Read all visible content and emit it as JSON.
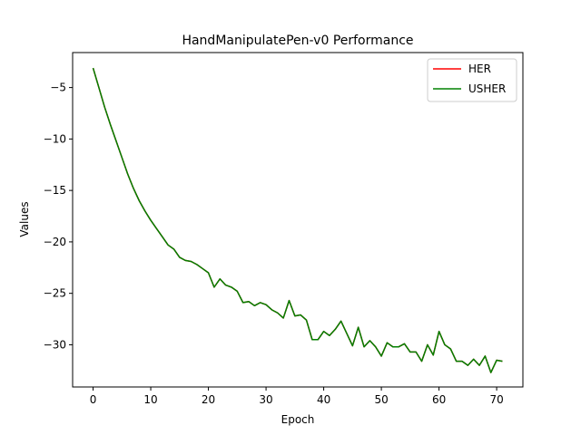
{
  "chart_data": {
    "type": "line",
    "title": "HandManipulatePen-v0 Performance",
    "xlabel": "Epoch",
    "ylabel": "Values",
    "xlim": [
      -3.55,
      74.55
    ],
    "ylim": [
      -34.1,
      -1.6
    ],
    "xticks": [
      0,
      10,
      20,
      30,
      40,
      50,
      60,
      70
    ],
    "yticks": [
      -5,
      -10,
      -15,
      -20,
      -25,
      -30
    ],
    "grid": false,
    "legend_position": "top-right",
    "series": [
      {
        "name": "HER",
        "color": "#ff0000",
        "x": [
          0,
          1,
          2,
          3,
          4,
          5,
          6,
          7,
          8,
          9,
          10,
          11,
          12,
          13,
          14,
          15,
          16,
          17,
          18,
          19,
          20,
          21,
          22,
          23,
          24,
          25,
          26,
          27,
          28,
          29,
          30,
          31,
          32,
          33,
          34,
          35,
          36,
          37,
          38,
          39,
          40,
          41,
          42,
          43,
          44,
          45,
          46,
          47,
          48,
          49,
          50,
          51,
          52,
          53,
          54,
          55,
          56,
          57,
          58,
          59,
          60,
          61,
          62,
          63,
          64,
          65,
          66,
          67,
          68,
          69,
          70,
          71
        ],
        "y": [
          -3.1,
          -5.0,
          -6.9,
          -8.6,
          -10.2,
          -11.8,
          -13.4,
          -14.8,
          -16.0,
          -17.0,
          -17.9,
          -18.7,
          -19.5,
          -20.3,
          -20.7,
          -21.5,
          -21.8,
          -21.9,
          -22.2,
          -22.6,
          -23.0,
          -24.4,
          -23.6,
          -24.2,
          -24.4,
          -24.8,
          -25.9,
          -25.8,
          -26.2,
          -25.9,
          -26.1,
          -26.6,
          -26.9,
          -27.4,
          -25.7,
          -27.2,
          -27.1,
          -27.6,
          -29.5,
          -29.5,
          -28.7,
          -29.1,
          -28.5,
          -27.7,
          -28.9,
          -30.1,
          -28.3,
          -30.2,
          -29.6,
          -30.2,
          -31.1,
          -29.8,
          -30.2,
          -30.2,
          -29.9,
          -30.7,
          -30.7,
          -31.6,
          -30.0,
          -31.0,
          -28.7,
          -30.0,
          -30.4,
          -31.6,
          -31.6,
          -32.0,
          -31.4,
          -32.0,
          -31.1,
          -32.7,
          -31.5,
          -31.6
        ]
      },
      {
        "name": "USHER",
        "color": "#008000",
        "x": [
          0,
          1,
          2,
          3,
          4,
          5,
          6,
          7,
          8,
          9,
          10,
          11,
          12,
          13,
          14,
          15,
          16,
          17,
          18,
          19,
          20,
          21,
          22,
          23,
          24,
          25,
          26,
          27,
          28,
          29,
          30,
          31,
          32,
          33,
          34,
          35,
          36,
          37,
          38,
          39,
          40,
          41,
          42,
          43,
          44,
          45,
          46,
          47,
          48,
          49,
          50,
          51,
          52,
          53,
          54,
          55,
          56,
          57,
          58,
          59,
          60,
          61,
          62,
          63,
          64,
          65,
          66,
          67,
          68,
          69,
          70,
          71
        ],
        "y": [
          -3.1,
          -5.0,
          -6.9,
          -8.6,
          -10.2,
          -11.8,
          -13.4,
          -14.8,
          -16.0,
          -17.0,
          -17.9,
          -18.7,
          -19.5,
          -20.3,
          -20.7,
          -21.5,
          -21.8,
          -21.9,
          -22.2,
          -22.6,
          -23.0,
          -24.4,
          -23.6,
          -24.2,
          -24.4,
          -24.8,
          -25.9,
          -25.8,
          -26.2,
          -25.9,
          -26.1,
          -26.6,
          -26.9,
          -27.4,
          -25.7,
          -27.2,
          -27.1,
          -27.6,
          -29.5,
          -29.5,
          -28.7,
          -29.1,
          -28.5,
          -27.7,
          -28.9,
          -30.1,
          -28.3,
          -30.2,
          -29.6,
          -30.2,
          -31.1,
          -29.8,
          -30.2,
          -30.2,
          -29.9,
          -30.7,
          -30.7,
          -31.6,
          -30.0,
          -31.0,
          -28.7,
          -30.0,
          -30.4,
          -31.6,
          -31.6,
          -32.0,
          -31.4,
          -32.0,
          -31.1,
          -32.7,
          -31.5,
          -31.6
        ]
      }
    ]
  }
}
